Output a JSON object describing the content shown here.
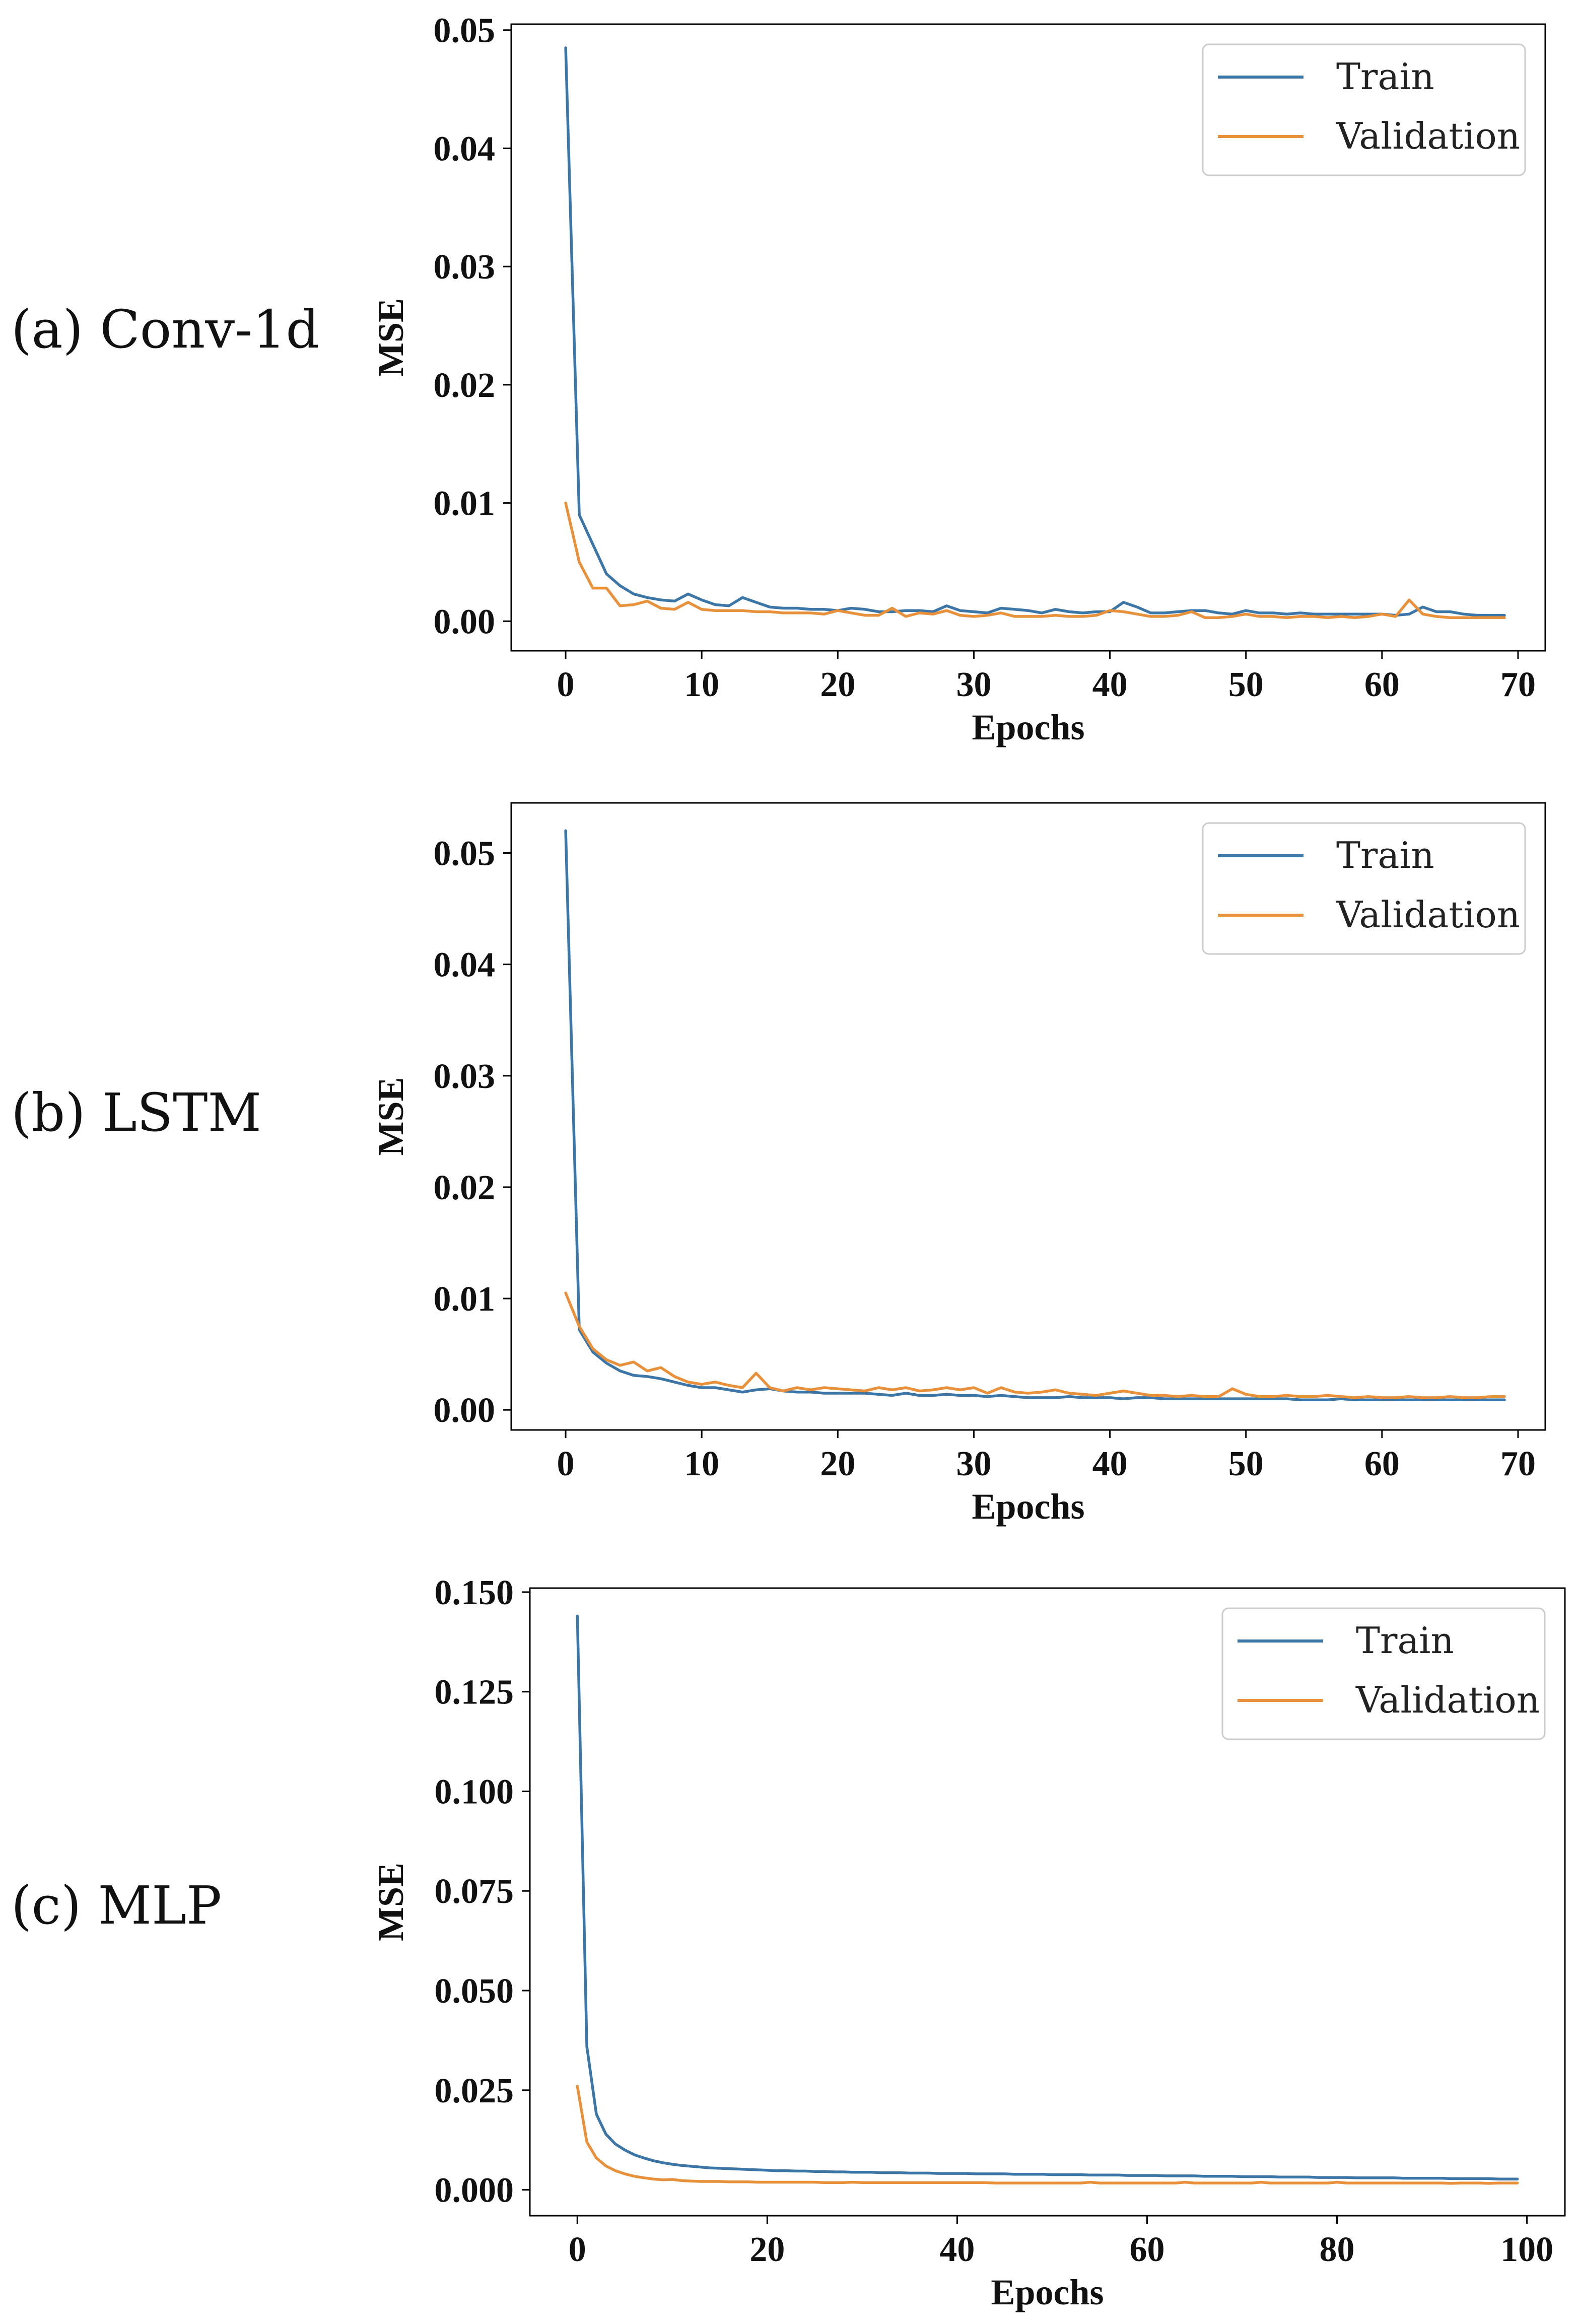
{
  "colors": {
    "train": "#3b76a6",
    "validation": "#e9913a",
    "legend_border": "#cccccc",
    "axis": "#000000"
  },
  "chart_data": [
    {
      "type": "line",
      "panel_label": "(a) Conv-1d",
      "xlabel": "Epochs",
      "ylabel": "MSE",
      "xlim": [
        -4,
        72
      ],
      "ylim": [
        -0.0025,
        0.0505
      ],
      "xticks": [
        0,
        10,
        20,
        30,
        40,
        50,
        60,
        70
      ],
      "xtick_labels": [
        "0",
        "10",
        "20",
        "30",
        "40",
        "50",
        "60",
        "70"
      ],
      "yticks": [
        0,
        0.01,
        0.02,
        0.03,
        0.04,
        0.05
      ],
      "ytick_labels": [
        "0.00",
        "0.01",
        "0.02",
        "0.03",
        "0.04",
        "0.05"
      ],
      "legend": {
        "position": "top-right",
        "entries": [
          "Train",
          "Validation"
        ]
      },
      "series": [
        {
          "name": "Train",
          "color_key": "train",
          "values": [
            0.0485,
            0.009,
            0.0065,
            0.004,
            0.003,
            0.0023,
            0.002,
            0.0018,
            0.0017,
            0.0023,
            0.0018,
            0.0014,
            0.0013,
            0.002,
            0.0016,
            0.0012,
            0.0011,
            0.0011,
            0.001,
            0.001,
            0.0009,
            0.0011,
            0.001,
            0.0008,
            0.0008,
            0.0009,
            0.0009,
            0.0008,
            0.0013,
            0.0009,
            0.0008,
            0.0007,
            0.0011,
            0.001,
            0.0009,
            0.0007,
            0.001,
            0.0008,
            0.0007,
            0.0008,
            0.0008,
            0.0016,
            0.0012,
            0.0007,
            0.0007,
            0.0008,
            0.0009,
            0.0009,
            0.0007,
            0.0006,
            0.0009,
            0.0007,
            0.0007,
            0.0006,
            0.0007,
            0.0006,
            0.0006,
            0.0006,
            0.0006,
            0.0006,
            0.0006,
            0.0005,
            0.0006,
            0.0012,
            0.0008,
            0.0008,
            0.0006,
            0.0005,
            0.0005,
            0.0005
          ]
        },
        {
          "name": "Validation",
          "color_key": "validation",
          "values": [
            0.01,
            0.005,
            0.0028,
            0.0028,
            0.0013,
            0.0014,
            0.0017,
            0.0011,
            0.001,
            0.0016,
            0.001,
            0.0009,
            0.0009,
            0.0009,
            0.0008,
            0.0008,
            0.0007,
            0.0007,
            0.0007,
            0.0006,
            0.0009,
            0.0007,
            0.0005,
            0.0005,
            0.0011,
            0.0004,
            0.0007,
            0.0006,
            0.0009,
            0.0005,
            0.0004,
            0.0005,
            0.0007,
            0.0004,
            0.0004,
            0.0004,
            0.0005,
            0.0004,
            0.0004,
            0.0005,
            0.0009,
            0.0008,
            0.0006,
            0.0004,
            0.0004,
            0.0005,
            0.0008,
            0.0003,
            0.0003,
            0.0004,
            0.0006,
            0.0004,
            0.0004,
            0.0003,
            0.0004,
            0.0004,
            0.0003,
            0.0004,
            0.0003,
            0.0004,
            0.0006,
            0.0004,
            0.0018,
            0.0006,
            0.0004,
            0.0003,
            0.0003,
            0.0003,
            0.0003,
            0.0003
          ]
        }
      ]
    },
    {
      "type": "line",
      "panel_label": "(b) LSTM",
      "xlabel": "Epochs",
      "ylabel": "MSE",
      "xlim": [
        -4,
        72
      ],
      "ylim": [
        -0.0018,
        0.0545
      ],
      "xticks": [
        0,
        10,
        20,
        30,
        40,
        50,
        60,
        70
      ],
      "xtick_labels": [
        "0",
        "10",
        "20",
        "30",
        "40",
        "50",
        "60",
        "70"
      ],
      "yticks": [
        0,
        0.01,
        0.02,
        0.03,
        0.04,
        0.05
      ],
      "ytick_labels": [
        "0.00",
        "0.01",
        "0.02",
        "0.03",
        "0.04",
        "0.05"
      ],
      "legend": {
        "position": "top-right",
        "entries": [
          "Train",
          "Validation"
        ]
      },
      "series": [
        {
          "name": "Train",
          "color_key": "train",
          "values": [
            0.052,
            0.0072,
            0.0052,
            0.0042,
            0.0035,
            0.0031,
            0.003,
            0.0028,
            0.0025,
            0.0022,
            0.002,
            0.002,
            0.0018,
            0.0016,
            0.0018,
            0.0019,
            0.0017,
            0.0016,
            0.0016,
            0.0015,
            0.0015,
            0.0015,
            0.0015,
            0.0014,
            0.0013,
            0.0015,
            0.0013,
            0.0013,
            0.0014,
            0.0013,
            0.0013,
            0.0012,
            0.0013,
            0.0012,
            0.0011,
            0.0011,
            0.0011,
            0.0012,
            0.0011,
            0.0011,
            0.0011,
            0.001,
            0.0011,
            0.0011,
            0.001,
            0.001,
            0.001,
            0.001,
            0.001,
            0.001,
            0.001,
            0.001,
            0.001,
            0.001,
            0.0009,
            0.0009,
            0.0009,
            0.001,
            0.0009,
            0.0009,
            0.0009,
            0.0009,
            0.0009,
            0.0009,
            0.0009,
            0.0009,
            0.0009,
            0.0009,
            0.0009,
            0.0009
          ]
        },
        {
          "name": "Validation",
          "color_key": "validation",
          "values": [
            0.0105,
            0.0075,
            0.0055,
            0.0045,
            0.004,
            0.0043,
            0.0035,
            0.0038,
            0.003,
            0.0025,
            0.0023,
            0.0025,
            0.0022,
            0.002,
            0.0033,
            0.002,
            0.0017,
            0.002,
            0.0018,
            0.002,
            0.0019,
            0.0018,
            0.0017,
            0.002,
            0.0018,
            0.002,
            0.0017,
            0.0018,
            0.002,
            0.0018,
            0.002,
            0.0015,
            0.002,
            0.0016,
            0.0015,
            0.0016,
            0.0018,
            0.0015,
            0.0014,
            0.0013,
            0.0015,
            0.0017,
            0.0015,
            0.0013,
            0.0013,
            0.0012,
            0.0013,
            0.0012,
            0.0012,
            0.0019,
            0.0014,
            0.0012,
            0.0012,
            0.0013,
            0.0012,
            0.0012,
            0.0013,
            0.0012,
            0.0011,
            0.0012,
            0.0011,
            0.0011,
            0.0012,
            0.0011,
            0.0011,
            0.0012,
            0.0011,
            0.0011,
            0.0012,
            0.0012
          ]
        }
      ]
    },
    {
      "type": "line",
      "panel_label": "(c) MLP",
      "xlabel": "Epochs",
      "ylabel": "MSE",
      "xlim": [
        -5,
        104
      ],
      "ylim": [
        -0.0065,
        0.151
      ],
      "xticks": [
        0,
        20,
        40,
        60,
        80,
        100
      ],
      "xtick_labels": [
        "0",
        "20",
        "40",
        "60",
        "80",
        "100"
      ],
      "yticks": [
        0,
        0.025,
        0.05,
        0.075,
        0.1,
        0.125,
        0.15
      ],
      "ytick_labels": [
        "0.000",
        "0.025",
        "0.050",
        "0.075",
        "0.100",
        "0.125",
        "0.150"
      ],
      "legend": {
        "position": "top-right",
        "entries": [
          "Train",
          "Validation"
        ]
      },
      "series": [
        {
          "name": "Train",
          "color_key": "train",
          "values": [
            0.144,
            0.036,
            0.019,
            0.014,
            0.0115,
            0.01,
            0.0088,
            0.008,
            0.0073,
            0.0068,
            0.0064,
            0.0061,
            0.0059,
            0.0057,
            0.0055,
            0.0054,
            0.0053,
            0.0052,
            0.0051,
            0.005,
            0.0049,
            0.0048,
            0.0048,
            0.0047,
            0.0047,
            0.0046,
            0.0046,
            0.0045,
            0.0045,
            0.0044,
            0.0044,
            0.0044,
            0.0043,
            0.0043,
            0.0043,
            0.0042,
            0.0042,
            0.0042,
            0.0041,
            0.0041,
            0.0041,
            0.0041,
            0.004,
            0.004,
            0.004,
            0.004,
            0.0039,
            0.0039,
            0.0039,
            0.0039,
            0.0038,
            0.0038,
            0.0038,
            0.0038,
            0.0037,
            0.0037,
            0.0037,
            0.0037,
            0.0036,
            0.0036,
            0.0036,
            0.0036,
            0.0035,
            0.0035,
            0.0035,
            0.0035,
            0.0034,
            0.0034,
            0.0034,
            0.0034,
            0.0033,
            0.0033,
            0.0033,
            0.0033,
            0.0032,
            0.0032,
            0.0032,
            0.0032,
            0.0031,
            0.0031,
            0.0031,
            0.0031,
            0.003,
            0.003,
            0.003,
            0.003,
            0.003,
            0.0029,
            0.0029,
            0.0029,
            0.0029,
            0.0029,
            0.0028,
            0.0028,
            0.0028,
            0.0028,
            0.0028,
            0.0027,
            0.0027,
            0.0027
          ]
        },
        {
          "name": "Validation",
          "color_key": "validation",
          "values": [
            0.026,
            0.012,
            0.008,
            0.006,
            0.0048,
            0.004,
            0.0034,
            0.003,
            0.0027,
            0.0025,
            0.0026,
            0.0023,
            0.0022,
            0.0021,
            0.0021,
            0.0021,
            0.002,
            0.002,
            0.002,
            0.0019,
            0.0019,
            0.0019,
            0.0019,
            0.0019,
            0.0019,
            0.0019,
            0.0018,
            0.0018,
            0.0018,
            0.0019,
            0.0018,
            0.0018,
            0.0018,
            0.0018,
            0.0018,
            0.0018,
            0.0018,
            0.0018,
            0.0018,
            0.0018,
            0.0018,
            0.0018,
            0.0018,
            0.0018,
            0.0017,
            0.0017,
            0.0017,
            0.0017,
            0.0017,
            0.0017,
            0.0017,
            0.0017,
            0.0017,
            0.0017,
            0.0019,
            0.0017,
            0.0017,
            0.0017,
            0.0017,
            0.0017,
            0.0017,
            0.0017,
            0.0017,
            0.0017,
            0.0019,
            0.0017,
            0.0017,
            0.0017,
            0.0017,
            0.0017,
            0.0017,
            0.0017,
            0.0019,
            0.0017,
            0.0017,
            0.0017,
            0.0017,
            0.0017,
            0.0017,
            0.0017,
            0.0019,
            0.0017,
            0.0017,
            0.0017,
            0.0017,
            0.0017,
            0.0017,
            0.0017,
            0.0017,
            0.0017,
            0.0017,
            0.0017,
            0.0016,
            0.0017,
            0.0017,
            0.0017,
            0.0016,
            0.0017,
            0.0017,
            0.0017
          ]
        }
      ]
    }
  ]
}
